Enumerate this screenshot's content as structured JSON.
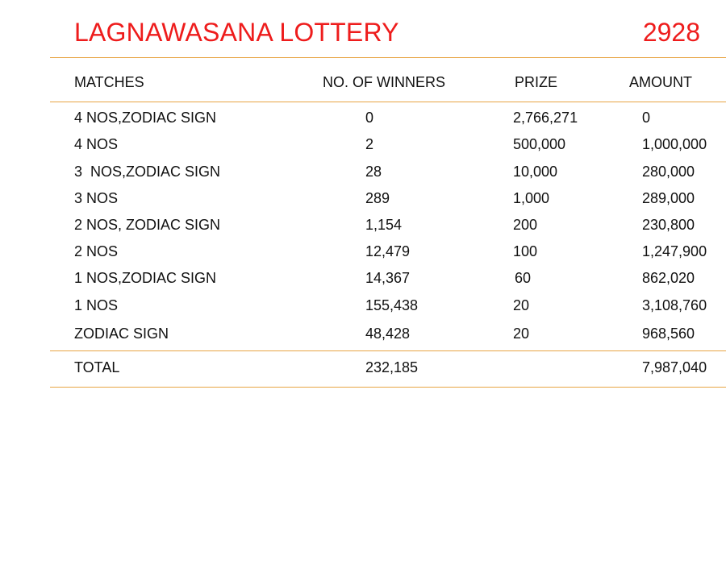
{
  "header": {
    "title": "LAGNAWASANA LOTTERY",
    "draw_number": "2928"
  },
  "columns": [
    "MATCHES",
    "NO. OF WINNERS",
    "PRIZE",
    "AMOUNT"
  ],
  "rows": [
    {
      "match": "4 NOS,ZODIAC SIGN",
      "winners": "0",
      "prize": "2,766,271",
      "amount": "0"
    },
    {
      "match": "4 NOS",
      "winners": "2",
      "prize": "500,000",
      "amount": "1,000,000"
    },
    {
      "match": "3  NOS,ZODIAC SIGN",
      "winners": "28",
      "prize": "10,000",
      "amount": "280,000"
    },
    {
      "match": "3 NOS",
      "winners": "289",
      "prize": "1,000",
      "amount": "289,000"
    },
    {
      "match": "2 NOS, ZODIAC SIGN",
      "winners": "1,154",
      "prize": "200",
      "amount": "230,800"
    },
    {
      "match": "2 NOS",
      "winners": "12,479",
      "prize": "100",
      "amount": "1,247,900"
    },
    {
      "match": "1 NOS,ZODIAC SIGN",
      "winners": "14,367",
      "prize": "60",
      "amount": "862,020"
    },
    {
      "match": "1 NOS",
      "winners": "155,438",
      "prize": "20",
      "amount": "3,108,760"
    },
    {
      "match": "ZODIAC SIGN",
      "winners": "48,428",
      "prize": "20",
      "amount": "968,560"
    }
  ],
  "total": {
    "label": "TOTAL",
    "winners": "232,185",
    "amount": "7,987,040"
  },
  "colors": {
    "title": "#ee1c1c",
    "rule": "#e8a544",
    "text": "#111111"
  }
}
